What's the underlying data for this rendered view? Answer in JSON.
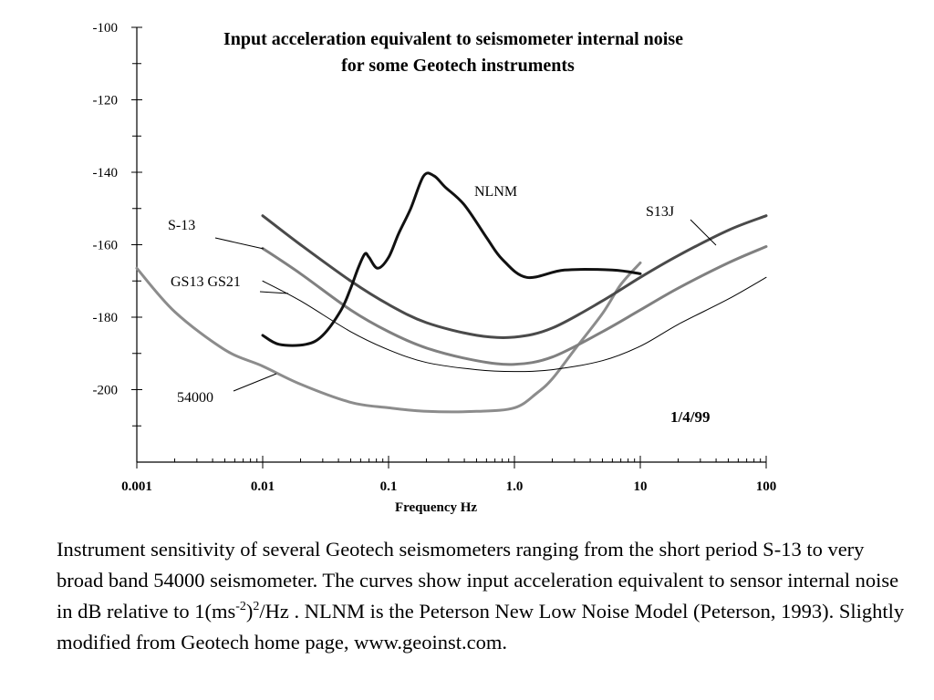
{
  "chart_data": {
    "type": "line",
    "title": [
      "Input acceleration equivalent to seismometer internal noise",
      "for some Geotech instruments"
    ],
    "xlabel": "Frequency Hz",
    "ylabel": "",
    "x_scale": "log",
    "xlim": [
      0.001,
      100
    ],
    "ylim": [
      -220,
      -100
    ],
    "x_ticks": [
      0.001,
      0.01,
      0.1,
      1,
      10,
      100
    ],
    "x_tick_labels": [
      "0.001",
      "0.01",
      "0.1",
      "1.0",
      "10",
      "100"
    ],
    "y_ticks": [
      -100,
      -120,
      -140,
      -160,
      -180,
      -200
    ],
    "y_tick_labels": [
      "-100",
      "-120",
      "-140",
      "-160",
      "-180",
      "-200"
    ],
    "grid": false,
    "date_label": "1/4/99",
    "series": [
      {
        "name": "NLNM",
        "color": "#111111",
        "width": 3,
        "points": [
          [
            0.01,
            -185
          ],
          [
            0.0135,
            -187.5
          ],
          [
            0.022,
            -187.5
          ],
          [
            0.03,
            -185
          ],
          [
            0.042,
            -178
          ],
          [
            0.05,
            -172
          ],
          [
            0.058,
            -166
          ],
          [
            0.065,
            -162.5
          ],
          [
            0.07,
            -163.5
          ],
          [
            0.082,
            -166.5
          ],
          [
            0.1,
            -163.5
          ],
          [
            0.12,
            -157
          ],
          [
            0.15,
            -150
          ],
          [
            0.19,
            -141
          ],
          [
            0.23,
            -141
          ],
          [
            0.28,
            -144
          ],
          [
            0.4,
            -149
          ],
          [
            0.6,
            -158
          ],
          [
            0.8,
            -164
          ],
          [
            1.25,
            -169
          ],
          [
            2.5,
            -167
          ],
          [
            6,
            -167
          ],
          [
            10,
            -168
          ]
        ]
      },
      {
        "name": "S13J",
        "color": "#4a4a4a",
        "width": 3,
        "points": [
          [
            0.01,
            -152
          ],
          [
            0.02,
            -160
          ],
          [
            0.05,
            -170
          ],
          [
            0.1,
            -176.5
          ],
          [
            0.2,
            -181.5
          ],
          [
            0.5,
            -185
          ],
          [
            1,
            -185.5
          ],
          [
            2,
            -183
          ],
          [
            5,
            -175.5
          ],
          [
            10,
            -169
          ],
          [
            20,
            -163
          ],
          [
            50,
            -156
          ],
          [
            100,
            -152
          ]
        ]
      },
      {
        "name": "S-13",
        "color": "#808080",
        "width": 3,
        "points": [
          [
            0.01,
            -161
          ],
          [
            0.02,
            -168
          ],
          [
            0.05,
            -178
          ],
          [
            0.1,
            -184
          ],
          [
            0.2,
            -188.5
          ],
          [
            0.5,
            -192
          ],
          [
            1,
            -193
          ],
          [
            2,
            -191
          ],
          [
            5,
            -184
          ],
          [
            10,
            -178
          ],
          [
            20,
            -172
          ],
          [
            50,
            -165
          ],
          [
            100,
            -160.5
          ]
        ]
      },
      {
        "name": "GS13 GS21",
        "color": "#000000",
        "width": 1,
        "points": [
          [
            0.01,
            -170
          ],
          [
            0.02,
            -175.5
          ],
          [
            0.05,
            -184
          ],
          [
            0.1,
            -189
          ],
          [
            0.2,
            -192.5
          ],
          [
            0.5,
            -194.5
          ],
          [
            1,
            -195
          ],
          [
            2,
            -194.5
          ],
          [
            5,
            -192
          ],
          [
            10,
            -188
          ],
          [
            20,
            -182
          ],
          [
            50,
            -175
          ],
          [
            100,
            -169
          ]
        ]
      },
      {
        "name": "54000",
        "color": "#8c8c8c",
        "width": 3,
        "points": [
          [
            0.001,
            -166.5
          ],
          [
            0.002,
            -178.5
          ],
          [
            0.005,
            -189
          ],
          [
            0.01,
            -193.5
          ],
          [
            0.02,
            -198.5
          ],
          [
            0.05,
            -203.5
          ],
          [
            0.1,
            -205
          ],
          [
            0.2,
            -206
          ],
          [
            0.5,
            -206
          ],
          [
            1,
            -205
          ],
          [
            1.5,
            -201
          ],
          [
            2,
            -197
          ],
          [
            3,
            -189
          ],
          [
            5,
            -179
          ],
          [
            7,
            -171
          ],
          [
            10,
            -165
          ]
        ]
      }
    ],
    "annotations": [
      {
        "text": "NLNM",
        "leader": false
      },
      {
        "text": "S13J",
        "leader": true
      },
      {
        "text": "S-13",
        "leader": true
      },
      {
        "text": "GS13 GS21",
        "leader": true
      },
      {
        "text": "54000",
        "leader": true
      }
    ]
  },
  "caption": {
    "before_sup1": "Instrument sensitivity of several Geotech seismometers  ranging from the short period S-13 to very broad band 54000 seismometer. The curves show input acceleration equivalent to sensor internal noise in dB relative to 1(ms",
    "sup1": "-2",
    "mid": ")",
    "sup2": "2",
    "after": "/Hz . NLNM is the Peterson New Low Noise Model (Peterson, 1993). Slightly modified from Geotech home page, www.geoinst.com."
  }
}
